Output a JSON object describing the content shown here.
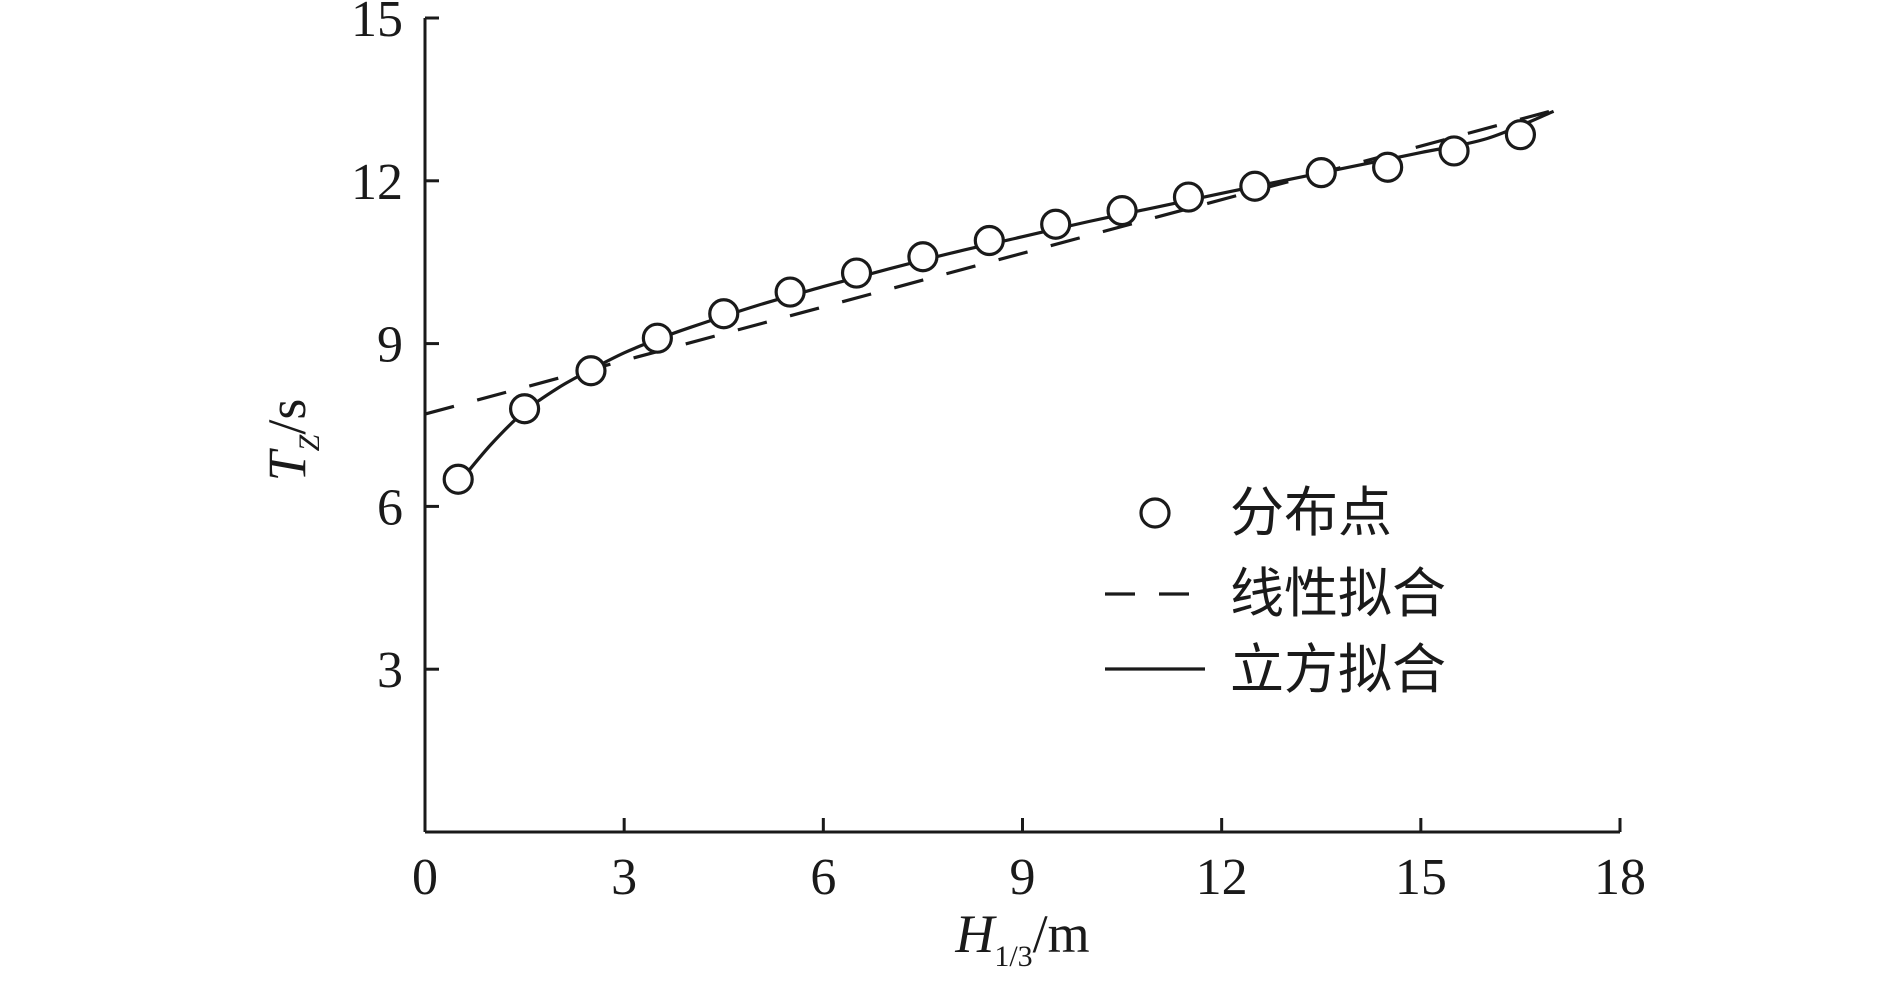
{
  "chart_data": {
    "type": "scatter",
    "x_axis": {
      "label_main": "H",
      "label_sub": "1/3",
      "label_unit": "/m",
      "range": [
        0,
        18
      ],
      "ticks": [
        0,
        3,
        6,
        9,
        12,
        15,
        18
      ],
      "tick_labels": [
        "0",
        "3",
        "6",
        "9",
        "12",
        "15",
        "18"
      ]
    },
    "y_axis": {
      "label_main": "T",
      "label_sub": "Z",
      "label_unit": "/s",
      "range": [
        0,
        15
      ],
      "ticks": [
        3,
        6,
        9,
        12,
        15
      ],
      "tick_labels": [
        "3",
        "6",
        "9",
        "12",
        "15"
      ]
    },
    "grid": false,
    "legend_position": "right",
    "series": [
      {
        "name": "分布点",
        "kind": "scatter",
        "marker": "open-circle",
        "x": [
          0.5,
          1.5,
          2.5,
          3.5,
          4.5,
          5.5,
          6.5,
          7.5,
          8.5,
          9.5,
          10.5,
          11.5,
          12.5,
          13.5,
          14.5,
          15.5,
          16.5
        ],
        "y": [
          6.5,
          7.8,
          8.5,
          9.1,
          9.55,
          9.95,
          10.3,
          10.6,
          10.9,
          11.2,
          11.45,
          11.7,
          11.9,
          12.15,
          12.25,
          12.55,
          12.85
        ]
      },
      {
        "name": "线性拟合",
        "kind": "line",
        "style": "dashed",
        "x": [
          0,
          17
        ],
        "y": [
          7.7,
          13.3
        ]
      },
      {
        "name": "立方拟合",
        "kind": "line",
        "style": "solid",
        "x": [
          0.5,
          1,
          1.5,
          2,
          2.5,
          3,
          3.5,
          4,
          5,
          6,
          7,
          8,
          9,
          10,
          11,
          12,
          13,
          14,
          15,
          16,
          17
        ],
        "y": [
          6.42,
          7.15,
          7.75,
          8.18,
          8.52,
          8.83,
          9.08,
          9.3,
          9.7,
          10.05,
          10.38,
          10.69,
          10.97,
          11.25,
          11.51,
          11.77,
          12.02,
          12.27,
          12.52,
          12.78,
          13.28
        ]
      }
    ]
  }
}
